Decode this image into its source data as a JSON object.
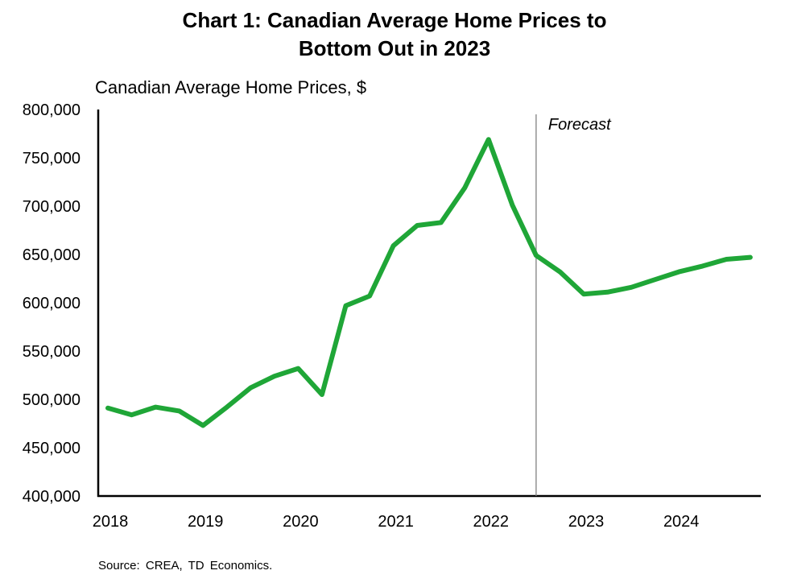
{
  "chart_data": {
    "type": "line",
    "title": "Chart 1: Canadian Average Home Prices to Bottom Out in 2023",
    "title_lines": [
      "Chart 1: Canadian Average Home Prices to",
      "Bottom Out in 2023"
    ],
    "subtitle": "Canadian Average Home Prices, $",
    "xlabel": "",
    "ylabel": "",
    "ylim": [
      400000,
      800000
    ],
    "yticks": [
      400000,
      450000,
      500000,
      550000,
      600000,
      650000,
      700000,
      750000,
      800000
    ],
    "ytick_labels": [
      "400,000",
      "450,000",
      "500,000",
      "550,000",
      "600,000",
      "650,000",
      "700,000",
      "750,000",
      "800,000"
    ],
    "xtick_labels": [
      "2018",
      "2019",
      "2020",
      "2021",
      "2022",
      "2023",
      "2024"
    ],
    "x": [
      "2018Q1",
      "2018Q2",
      "2018Q3",
      "2018Q4",
      "2019Q1",
      "2019Q2",
      "2019Q3",
      "2019Q4",
      "2020Q1",
      "2020Q2",
      "2020Q3",
      "2020Q4",
      "2021Q1",
      "2021Q2",
      "2021Q3",
      "2021Q4",
      "2022Q1",
      "2022Q2",
      "2022Q3",
      "2022Q4",
      "2023Q1",
      "2023Q2",
      "2023Q3",
      "2023Q4",
      "2024Q1",
      "2024Q2",
      "2024Q3",
      "2024Q4"
    ],
    "series": [
      {
        "values": [
          491000,
          484000,
          492000,
          488000,
          473000,
          492000,
          512000,
          524000,
          532000,
          505000,
          597000,
          607000,
          659000,
          680000,
          683000,
          719000,
          769000,
          701000,
          649000,
          632000,
          609000,
          611000,
          616000,
          624000,
          632000,
          638000,
          645000,
          647000
        ],
        "color": "#1fa637"
      }
    ],
    "annotation": {
      "label": "Forecast",
      "at": "2022Q3"
    },
    "grid": false,
    "source": "Source:  CREA,  TD Economics."
  }
}
